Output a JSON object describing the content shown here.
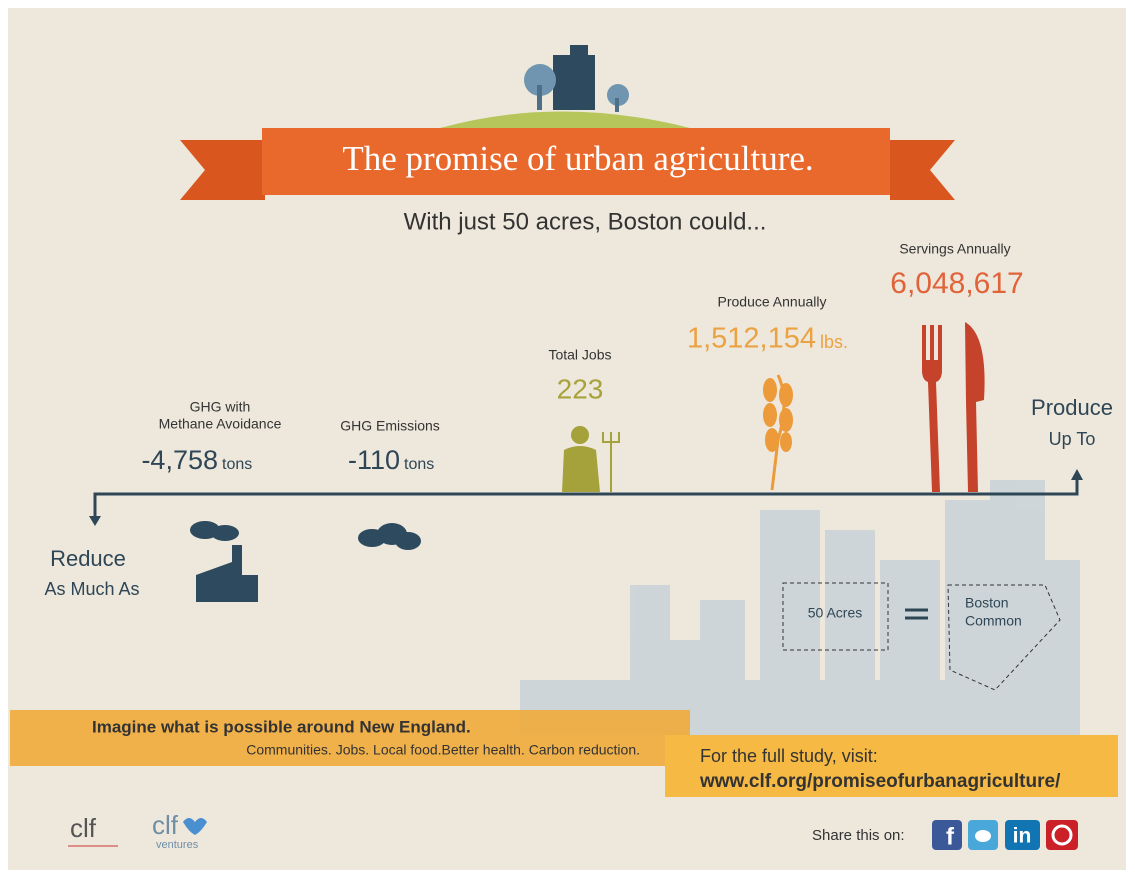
{
  "header": {
    "title": "The promise of urban agriculture.",
    "subtitle": "With just 50 acres, Boston could..."
  },
  "stats": [
    {
      "label": [
        "GHG with",
        "Methane Avoidance"
      ],
      "value": "-4,758",
      "unit": "tons"
    },
    {
      "label": [
        "GHG Emissions"
      ],
      "value": "-110",
      "unit": "tons"
    },
    {
      "label": [
        "Total Jobs"
      ],
      "value": "223"
    },
    {
      "label": [
        "Produce Annually"
      ],
      "value": "1,512,154",
      "unit": "lbs."
    },
    {
      "label": [
        "Servings Annually"
      ],
      "value": "6,048,617"
    }
  ],
  "axis": {
    "up": [
      "Produce",
      "Up To"
    ],
    "down": [
      "Reduce",
      "As Much As"
    ]
  },
  "comparison": {
    "left": "50 Acres",
    "right": [
      "Boston",
      "Common"
    ]
  },
  "banner": {
    "headline": "Imagine what is possible around New England.",
    "tagline": "Communities. Jobs. Local food.Better health. Carbon reduction."
  },
  "study": {
    "intro": "For the full study, visit:",
    "url": "www.clf.org/promiseofurbanagriculture/"
  },
  "footer": {
    "logos": [
      "clf",
      "clf",
      "ventures"
    ],
    "share": "Share this on:",
    "icons": [
      "f",
      "in"
    ]
  }
}
